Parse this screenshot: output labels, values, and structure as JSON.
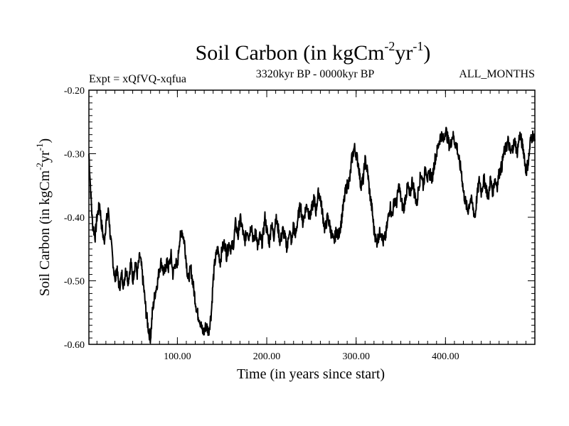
{
  "chart_data": {
    "type": "line",
    "title": "Soil Carbon (in kgCm",
    "title_exp1": "-2",
    "title_mid": "yr",
    "title_exp2": "-1",
    "title_close": ")",
    "subtitle_left": "Expt = xQfVQ-xqfua",
    "subtitle_center": "3320kyr BP - 0000kyr BP",
    "subtitle_right": "ALL_MONTHS",
    "xlabel": "Time (in years since start)",
    "ylabel": "Soil Carbon (in kgCm",
    "ylabel_exp1": "-2",
    "ylabel_mid": "yr",
    "ylabel_exp2": "-1",
    "ylabel_close": ")",
    "xlim": [
      1,
      500
    ],
    "ylim": [
      -0.6,
      -0.2
    ],
    "xticks": [
      100,
      200,
      300,
      400
    ],
    "xtick_labels": [
      "100.00",
      "200.00",
      "300.00",
      "400.00"
    ],
    "yticks": [
      -0.2,
      -0.3,
      -0.4,
      -0.5,
      -0.6
    ],
    "ytick_labels": [
      "-0.20",
      "-0.30",
      "-0.40",
      "-0.50",
      "-0.60"
    ],
    "grid": false,
    "series": [
      {
        "name": "Soil Carbon",
        "color": "#000000",
        "x": [
          1,
          3,
          5,
          8,
          10,
          13,
          15,
          18,
          20,
          23,
          25,
          28,
          30,
          32,
          35,
          38,
          40,
          42,
          45,
          48,
          50,
          53,
          55,
          58,
          60,
          63,
          65,
          68,
          70,
          72,
          75,
          78,
          80,
          82,
          85,
          88,
          90,
          93,
          95,
          98,
          100,
          102,
          105,
          108,
          110,
          112,
          115,
          118,
          120,
          122,
          125,
          128,
          130,
          132,
          135,
          138,
          140,
          142,
          145,
          148,
          150,
          153,
          155,
          158,
          160,
          163,
          165,
          168,
          170,
          173,
          175,
          178,
          180,
          183,
          185,
          188,
          190,
          192,
          195,
          198,
          200,
          203,
          205,
          208,
          210,
          213,
          215,
          218,
          220,
          223,
          225,
          228,
          230,
          232,
          235,
          238,
          240,
          243,
          245,
          248,
          250,
          253,
          255,
          258,
          260,
          263,
          265,
          268,
          270,
          273,
          275,
          278,
          280,
          283,
          285,
          288,
          290,
          293,
          295,
          298,
          300,
          303,
          305,
          308,
          310,
          313,
          315,
          318,
          320,
          323,
          325,
          328,
          330,
          333,
          335,
          338,
          340,
          343,
          345,
          348,
          350,
          353,
          355,
          358,
          360,
          363,
          365,
          368,
          370,
          373,
          375,
          378,
          380,
          383,
          385,
          388,
          390,
          393,
          395,
          398,
          400,
          403,
          405,
          408,
          410,
          413,
          415,
          418,
          420,
          423,
          425,
          428,
          430,
          433,
          435,
          438,
          440,
          443,
          445,
          448,
          450,
          453,
          455,
          458,
          460,
          463,
          465,
          468,
          470,
          473,
          475,
          478,
          480,
          483,
          485,
          488,
          490,
          493,
          495,
          498,
          500
        ],
        "values": [
          -0.3,
          -0.36,
          -0.41,
          -0.43,
          -0.4,
          -0.38,
          -0.41,
          -0.44,
          -0.41,
          -0.39,
          -0.43,
          -0.47,
          -0.5,
          -0.48,
          -0.51,
          -0.49,
          -0.51,
          -0.48,
          -0.5,
          -0.47,
          -0.5,
          -0.47,
          -0.49,
          -0.46,
          -0.48,
          -0.52,
          -0.55,
          -0.58,
          -0.59,
          -0.55,
          -0.52,
          -0.5,
          -0.48,
          -0.47,
          -0.49,
          -0.47,
          -0.48,
          -0.46,
          -0.49,
          -0.47,
          -0.48,
          -0.44,
          -0.42,
          -0.44,
          -0.47,
          -0.5,
          -0.48,
          -0.51,
          -0.53,
          -0.55,
          -0.56,
          -0.58,
          -0.58,
          -0.57,
          -0.58,
          -0.55,
          -0.5,
          -0.47,
          -0.45,
          -0.47,
          -0.45,
          -0.44,
          -0.46,
          -0.44,
          -0.45,
          -0.44,
          -0.41,
          -0.43,
          -0.4,
          -0.42,
          -0.44,
          -0.42,
          -0.43,
          -0.41,
          -0.44,
          -0.42,
          -0.45,
          -0.43,
          -0.44,
          -0.4,
          -0.42,
          -0.44,
          -0.41,
          -0.43,
          -0.4,
          -0.42,
          -0.44,
          -0.42,
          -0.43,
          -0.45,
          -0.42,
          -0.44,
          -0.41,
          -0.43,
          -0.4,
          -0.38,
          -0.41,
          -0.39,
          -0.38,
          -0.4,
          -0.39,
          -0.37,
          -0.39,
          -0.36,
          -0.37,
          -0.4,
          -0.42,
          -0.4,
          -0.41,
          -0.43,
          -0.44,
          -0.42,
          -0.43,
          -0.41,
          -0.39,
          -0.36,
          -0.35,
          -0.34,
          -0.31,
          -0.29,
          -0.3,
          -0.32,
          -0.35,
          -0.34,
          -0.31,
          -0.33,
          -0.36,
          -0.39,
          -0.42,
          -0.44,
          -0.43,
          -0.42,
          -0.44,
          -0.43,
          -0.41,
          -0.38,
          -0.4,
          -0.37,
          -0.38,
          -0.35,
          -0.37,
          -0.39,
          -0.37,
          -0.35,
          -0.37,
          -0.34,
          -0.36,
          -0.38,
          -0.35,
          -0.33,
          -0.35,
          -0.32,
          -0.34,
          -0.33,
          -0.34,
          -0.31,
          -0.3,
          -0.28,
          -0.27,
          -0.28,
          -0.26,
          -0.28,
          -0.29,
          -0.27,
          -0.28,
          -0.29,
          -0.31,
          -0.33,
          -0.36,
          -0.38,
          -0.39,
          -0.37,
          -0.38,
          -0.4,
          -0.37,
          -0.34,
          -0.36,
          -0.34,
          -0.35,
          -0.37,
          -0.34,
          -0.36,
          -0.34,
          -0.35,
          -0.33,
          -0.32,
          -0.3,
          -0.29,
          -0.28,
          -0.3,
          -0.29,
          -0.28,
          -0.3,
          -0.27,
          -0.28,
          -0.3,
          -0.33,
          -0.31,
          -0.28,
          -0.27,
          -0.28
        ]
      }
    ]
  }
}
